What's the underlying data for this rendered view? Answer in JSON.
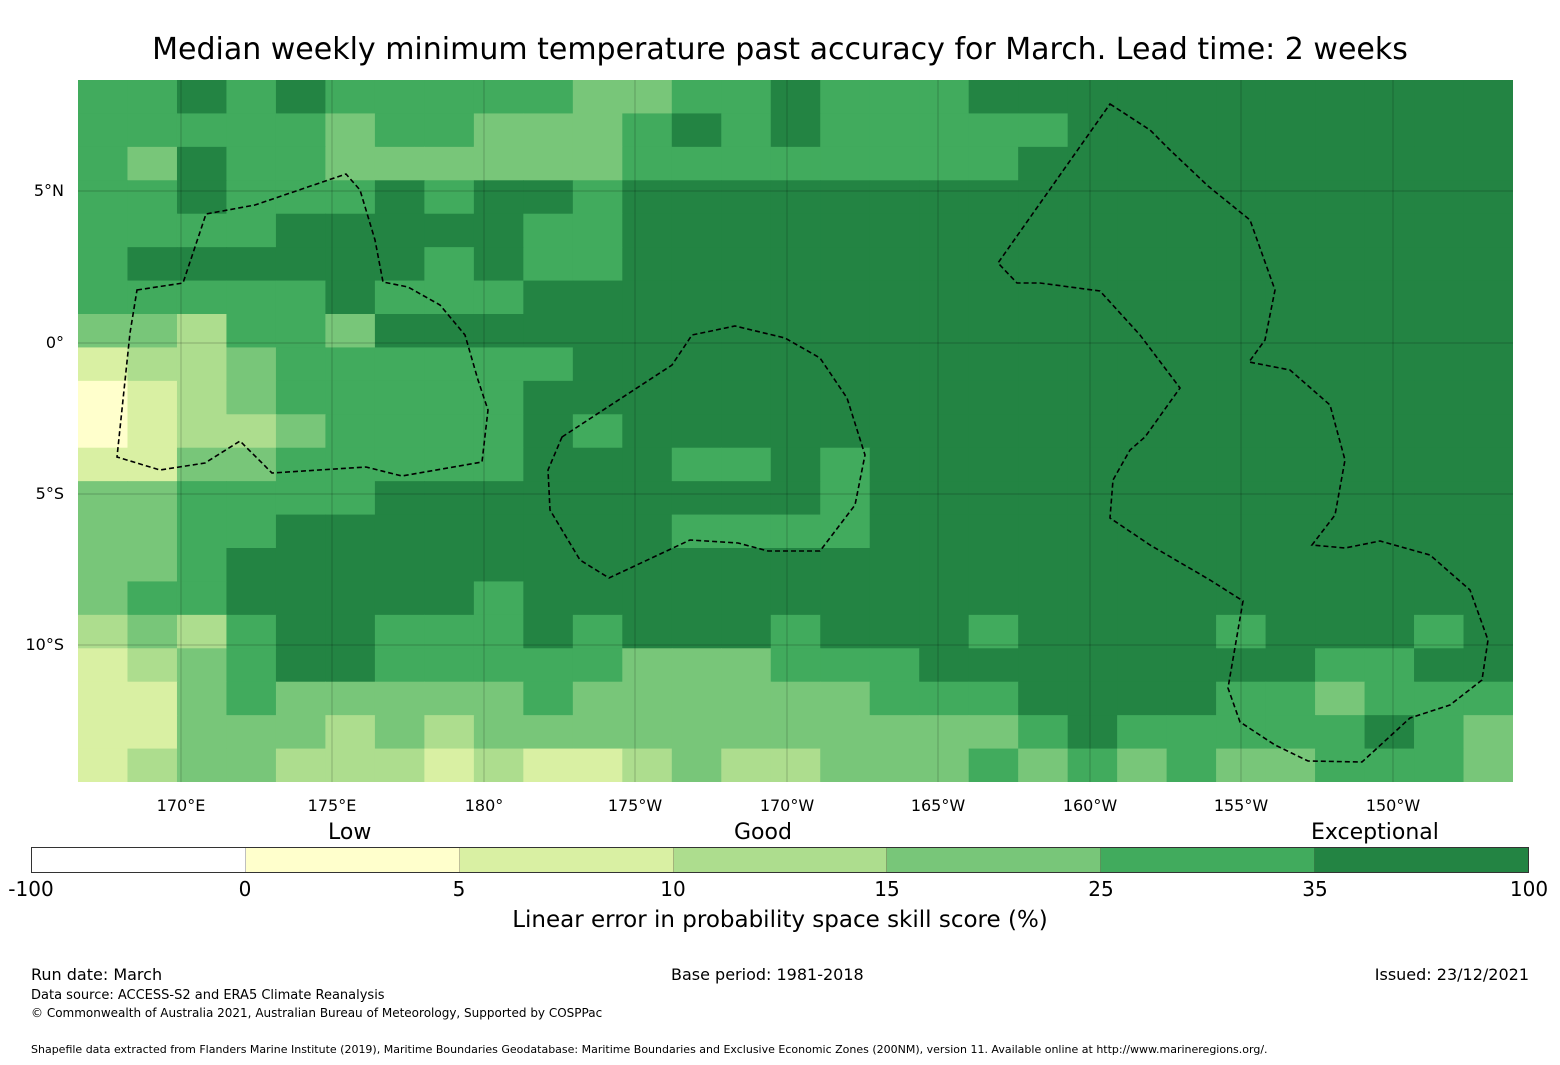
{
  "title": "Median weekly minimum temperature past accuracy for March. Lead time: 2 weeks",
  "map": {
    "lat_labels": [
      "5°N",
      "0°",
      "5°S",
      "10°S"
    ],
    "lon_labels": [
      "170°E",
      "175°E",
      "180°",
      "175°W",
      "170°W",
      "165°W",
      "160°W",
      "155°W",
      "150°W"
    ],
    "class_colors": {
      "0": "#ffffff",
      "1": "#ffffcc",
      "2": "#d9f0a3",
      "3": "#addd8e",
      "4": "#78c679",
      "5": "#41ab5d",
      "6": "#238443"
    },
    "skill_class_grid": [
      "55656555554455655566666666666",
      "55555455444565655555666666666",
      "54655444444555555556666666666",
      "55655565665666666666666666666",
      "55556666655666666666666666666",
      "56666665655666666666666666666",
      "55555655566666666666666666666",
      "44355466666666666666666666666",
      "23345555556666666666666666666",
      "12345555566666666666666666666",
      "12334555565666666666666666666",
      "22445555566655656666666666666",
      "44555566666666656666666666666",
      "44556666666655556666666666666",
      "44566666666666666666666666666",
      "45566666566666666666666666666",
      "34356655565666566656666566656",
      "23456655555444555666666665566",
      "22454444454444445556666554555",
      "22444343444444444445655555654",
      "23443332322343344454545445554"
    ]
  },
  "colorbar": {
    "categories": [
      "Low",
      "Good",
      "Exceptional"
    ],
    "ticks": [
      "-100",
      "0",
      "5",
      "10",
      "15",
      "25",
      "35",
      "100"
    ],
    "colors": [
      "#ffffff",
      "#ffffcc",
      "#d9f0a3",
      "#addd8e",
      "#78c679",
      "#41ab5d",
      "#238443"
    ],
    "label": "Linear error in probability space skill score (%)"
  },
  "footer": {
    "run_date": "Run date: March",
    "base_period": "Base period: 1981-2018",
    "issued": "Issued: 23/12/2021",
    "data_source": "Data source: ACCESS-S2 and ERA5 Climate Reanalysis",
    "copyright": "© Commonwealth of Australia 2021, Australian Bureau of Meteorology, Supported by COSPPac",
    "shapefile": "Shapefile data extracted from Flanders Marine Institute (2019), Maritime Boundaries Geodatabase: Maritime Boundaries and Exclusive Economic Zones (200NM), version 11. Available online at http://www.marineregions.org/."
  }
}
